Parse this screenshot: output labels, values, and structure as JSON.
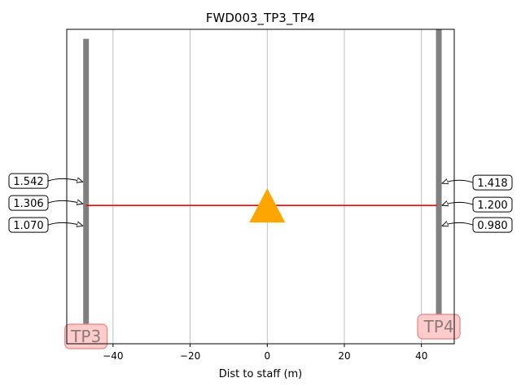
{
  "chart_data": {
    "type": "scatter",
    "title": "FWD003_TP3_TP4",
    "xlabel": "Dist to staff (m)",
    "ylabel": "",
    "xlim": [
      -52,
      48.5
    ],
    "ylim": [
      0,
      1
    ],
    "x_ticks": [
      -40,
      -20,
      0,
      20,
      40
    ],
    "grid": "x-only",
    "colors": {
      "staff": "#808080",
      "sight_line": "#ff0000",
      "instrument": "#ffa500",
      "tag_fill": "#ffcccc",
      "tag_edge": "#f08080"
    },
    "instrument": {
      "x": 0,
      "y": 0.44,
      "marker": "triangle"
    },
    "sight_line": {
      "x": [
        -47,
        44
      ],
      "y": 0.44
    },
    "staffs": [
      {
        "name": "TP3",
        "x": -47,
        "y_bottom": 0,
        "y_top": 0.97,
        "annotations": [
          {
            "text": "1.542",
            "y": 0.51
          },
          {
            "text": "1.306",
            "y": 0.44
          },
          {
            "text": "1.070",
            "y": 0.37
          }
        ]
      },
      {
        "name": "TP4",
        "x": 44.5,
        "y_bottom": 0.09,
        "y_top": 1.0,
        "annotations": [
          {
            "text": "1.418",
            "y": 0.505
          },
          {
            "text": "1.200",
            "y": 0.435
          },
          {
            "text": "0.980",
            "y": 0.37
          }
        ]
      }
    ]
  }
}
